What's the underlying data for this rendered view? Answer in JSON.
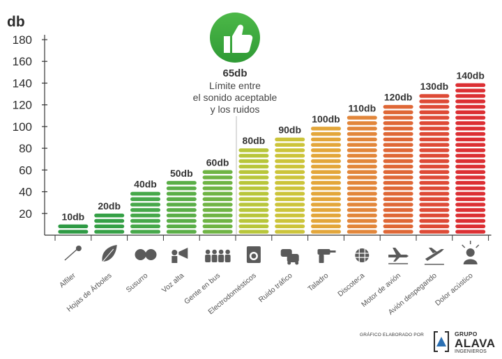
{
  "chart_data": {
    "type": "bar",
    "ylabel": "db",
    "ylim": [
      0,
      180
    ],
    "yticks": [
      20,
      40,
      60,
      80,
      100,
      120,
      140,
      160,
      180
    ],
    "grid": false,
    "categories": [
      "Alfiler",
      "Hojas de Árboles",
      "Susurro",
      "Voz alta",
      "Gente en bus",
      "Electrodomésticos",
      "Ruido tráfico",
      "Taladro",
      "Discoteca",
      "Motor de avión",
      "Avión despegando",
      "Dolor acústico"
    ],
    "values": [
      10,
      20,
      40,
      50,
      60,
      80,
      90,
      100,
      110,
      120,
      130,
      140
    ],
    "value_labels": [
      "10db",
      "20db",
      "40db",
      "50db",
      "60db",
      "80db",
      "90db",
      "100db",
      "110db",
      "120db",
      "130db",
      "140db"
    ],
    "colors": [
      "#2e9a44",
      "#35a046",
      "#46a84a",
      "#5aae47",
      "#6fb444",
      "#b8c63a",
      "#ccc43a",
      "#e3a63a",
      "#e2863a",
      "#df6736",
      "#de4a36",
      "#dc2f33"
    ],
    "annotation": {
      "value": "65db",
      "lines": [
        "Límite entre",
        "el sonido aceptable",
        "y los ruidos"
      ],
      "marker_value": 65
    }
  },
  "category_icons": [
    "pin-icon",
    "leaf-icon",
    "whisper-faces-icon",
    "megaphone-icon",
    "crowd-icon",
    "washing-machine-icon",
    "traffic-cars-icon",
    "drill-icon",
    "disco-ball-icon",
    "airplane-engine-icon",
    "airplane-takeoff-icon",
    "pain-head-icon"
  ],
  "badge_icon": "thumbs-up-icon",
  "badge_color": "#3aaa35",
  "footer": {
    "credit": "GRÁFICO ELABORADO POR",
    "logo_line1": "GRUPO",
    "logo_line2": "ALAVA",
    "logo_line3": "INGENIEROS"
  }
}
